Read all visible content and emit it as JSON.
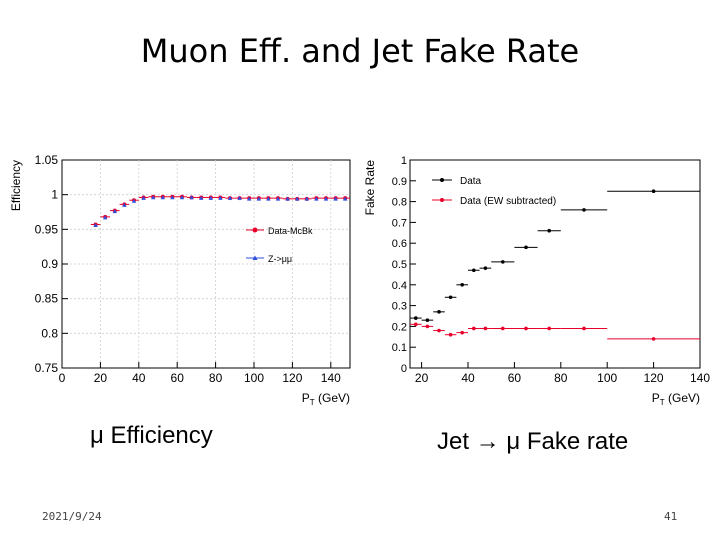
{
  "slide": {
    "title": "Muon Eff. and Jet Fake Rate",
    "caption_left": "μ Efficiency",
    "caption_right": "Jet → μ Fake rate",
    "date": "2021/9/24",
    "page_number": "41"
  },
  "chart_data": [
    {
      "type": "scatter",
      "title": "",
      "xlabel": "P_T (GeV)",
      "ylabel": "Efficiency",
      "xlim": [
        0,
        150
      ],
      "ylim": [
        0.75,
        1.05
      ],
      "xticks": [
        0,
        20,
        40,
        60,
        80,
        100,
        120,
        140
      ],
      "xtick_labels": [
        "0",
        "20",
        "40",
        "60",
        "80",
        "100",
        "120",
        "140"
      ],
      "yticks": [
        0.75,
        0.8,
        0.85,
        0.9,
        0.95,
        1.0,
        1.05
      ],
      "ytick_labels": [
        "0.75",
        "0.8",
        "0.85",
        "0.9",
        "0.95",
        "1",
        "1.05"
      ],
      "grid": true,
      "legend_position": "right",
      "series": [
        {
          "name": "Data-McBk",
          "color": "#e8002a",
          "marker": "circle",
          "x": [
            17.5,
            22.5,
            27.5,
            32.5,
            37.5,
            42.5,
            47.5,
            52.5,
            57.5,
            62.5,
            67.5,
            72.5,
            77.5,
            82.5,
            87.5,
            92.5,
            97.5,
            102.5,
            107.5,
            112.5,
            117.5,
            122.5,
            127.5,
            132.5,
            137.5,
            142.5,
            147.5
          ],
          "y": [
            0.957,
            0.968,
            0.977,
            0.986,
            0.992,
            0.996,
            0.997,
            0.997,
            0.997,
            0.997,
            0.996,
            0.996,
            0.996,
            0.996,
            0.995,
            0.995,
            0.995,
            0.995,
            0.995,
            0.995,
            0.994,
            0.994,
            0.994,
            0.995,
            0.995,
            0.995,
            0.995
          ],
          "xerr": [
            2.5,
            2.5,
            2.5,
            2.5,
            2.5,
            2.5,
            2.5,
            2.5,
            2.5,
            2.5,
            2.5,
            2.5,
            2.5,
            2.5,
            2.5,
            2.5,
            2.5,
            2.5,
            2.5,
            2.5,
            2.5,
            2.5,
            2.5,
            2.5,
            2.5,
            2.5,
            2.5
          ]
        },
        {
          "name": "Z->μμ",
          "color": "#3050e0",
          "marker": "triangle",
          "x": [
            17.5,
            22.5,
            27.5,
            32.5,
            37.5,
            42.5,
            47.5,
            52.5,
            57.5,
            62.5,
            67.5,
            72.5,
            77.5,
            82.5,
            87.5,
            92.5,
            97.5,
            102.5,
            107.5,
            112.5,
            117.5,
            122.5,
            127.5,
            132.5,
            137.5,
            142.5,
            147.5
          ],
          "y": [
            0.956,
            0.967,
            0.976,
            0.985,
            0.991,
            0.995,
            0.996,
            0.996,
            0.996,
            0.996,
            0.996,
            0.995,
            0.995,
            0.995,
            0.995,
            0.995,
            0.994,
            0.994,
            0.994,
            0.994,
            0.994,
            0.994,
            0.994,
            0.994,
            0.994,
            0.994,
            0.994
          ]
        }
      ]
    },
    {
      "type": "scatter",
      "title": "",
      "xlabel": "P_T (GeV)",
      "ylabel": "Fake Rate",
      "xlim": [
        15,
        140
      ],
      "ylim": [
        0,
        1
      ],
      "xticks": [
        20,
        40,
        60,
        80,
        100,
        120,
        140
      ],
      "xtick_labels": [
        "20",
        "40",
        "60",
        "80",
        "100",
        "120",
        "140"
      ],
      "yticks": [
        0,
        0.1,
        0.2,
        0.3,
        0.4,
        0.5,
        0.6,
        0.7,
        0.8,
        0.9,
        1.0
      ],
      "ytick_labels": [
        "0",
        "0.1",
        "0.2",
        "0.3",
        "0.4",
        "0.5",
        "0.6",
        "0.7",
        "0.8",
        "0.9",
        "1"
      ],
      "grid": false,
      "legend_position": "top-left",
      "series": [
        {
          "name": "Data",
          "color": "#000000",
          "x": [
            17.5,
            22.5,
            27.5,
            32.5,
            37.5,
            42.5,
            47.5,
            55,
            65,
            75,
            90,
            120
          ],
          "y": [
            0.24,
            0.23,
            0.27,
            0.34,
            0.4,
            0.47,
            0.48,
            0.51,
            0.58,
            0.66,
            0.76,
            0.85
          ],
          "xerr": [
            2.5,
            2.5,
            2.5,
            2.5,
            2.5,
            2.5,
            2.5,
            5,
            5,
            5,
            10,
            20
          ]
        },
        {
          "name": "Data (EW subtracted)",
          "color": "#e8002a",
          "x": [
            17.5,
            22.5,
            27.5,
            32.5,
            37.5,
            42.5,
            47.5,
            55,
            65,
            75,
            90,
            120
          ],
          "y": [
            0.21,
            0.2,
            0.18,
            0.16,
            0.17,
            0.19,
            0.19,
            0.19,
            0.19,
            0.19,
            0.19,
            0.14
          ],
          "xerr": [
            2.5,
            2.5,
            2.5,
            2.5,
            2.5,
            2.5,
            2.5,
            5,
            5,
            5,
            10,
            20
          ]
        }
      ]
    }
  ]
}
